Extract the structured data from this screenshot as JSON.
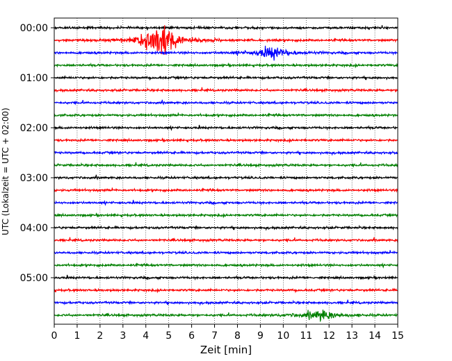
{
  "chart_data": {
    "type": "line",
    "title": "",
    "xlabel": "Zeit  [min]",
    "ylabel": "UTC (Lokalzeit = UTC + 02:00)",
    "xlim": [
      0,
      15
    ],
    "x_ticks": [
      0,
      1,
      2,
      3,
      4,
      5,
      6,
      7,
      8,
      9,
      10,
      11,
      12,
      13,
      14,
      15
    ],
    "x_tick_labels": [
      "0",
      "1",
      "2",
      "3",
      "4",
      "5",
      "6",
      "7",
      "8",
      "9",
      "10",
      "11",
      "12",
      "13",
      "14",
      "15"
    ],
    "y_tick_labels": [
      "00:00",
      "01:00",
      "02:00",
      "03:00",
      "04:00",
      "05:00"
    ],
    "grid": "vertical dotted",
    "colors": [
      "#000000",
      "#ff0000",
      "#0000ff",
      "#008000"
    ],
    "traces_per_hour": 4,
    "trace_minutes": 15,
    "trace_start_times": [
      "00:00",
      "00:15",
      "00:30",
      "00:45",
      "01:00",
      "01:15",
      "01:30",
      "01:45",
      "02:00",
      "02:15",
      "02:30",
      "02:45",
      "03:00",
      "03:15",
      "03:30",
      "03:45",
      "04:00",
      "04:15",
      "04:30",
      "04:45",
      "05:00",
      "05:15",
      "05:30",
      "05:45"
    ],
    "events": [
      {
        "trace": "00:15",
        "center_min": 4.6,
        "amplitude": 1.0
      },
      {
        "trace": "00:30",
        "center_min": 9.5,
        "amplitude": 0.35
      },
      {
        "trace": "05:45",
        "center_min": 11.6,
        "amplitude": 0.3
      }
    ]
  }
}
